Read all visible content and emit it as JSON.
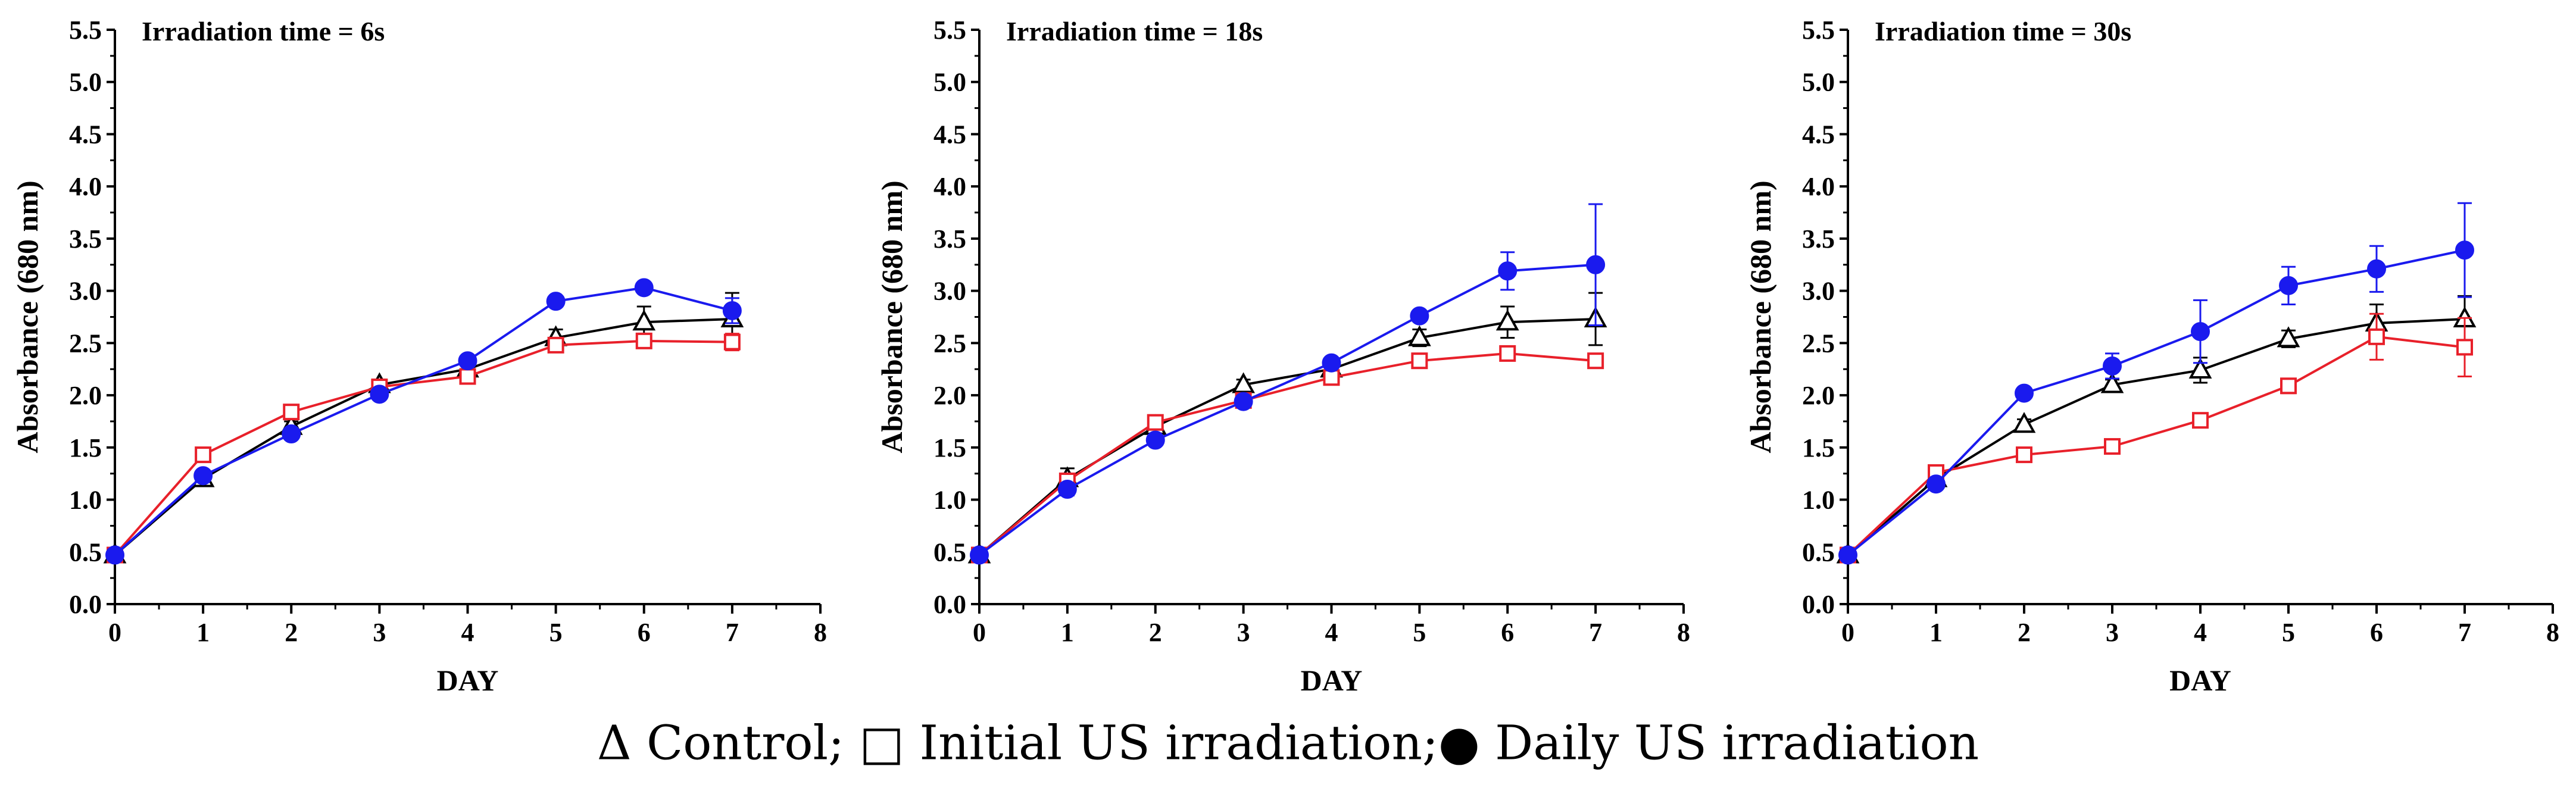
{
  "legend": {
    "control_symbol": "Δ",
    "control_label": " Control;",
    "initial_symbol": " □",
    "initial_label": " Initial US irradiation;",
    "daily_symbol": "●",
    "daily_label": " Daily US irradiation"
  },
  "chart_data": [
    {
      "type": "line",
      "title": "Irradiation time = 6s",
      "xlabel": "DAY",
      "ylabel": "Absorbance (680 nm)",
      "xlim": [
        0,
        8
      ],
      "ylim": [
        0,
        5.5
      ],
      "xticks": [
        "0",
        "1",
        "2",
        "3",
        "4",
        "5",
        "6",
        "7",
        "8"
      ],
      "yticks": [
        "0.0",
        "0.5",
        "1.0",
        "1.5",
        "2.0",
        "2.5",
        "3.0",
        "3.5",
        "4.0",
        "4.5",
        "5.0",
        "5.5"
      ],
      "x": [
        0,
        1,
        2,
        3,
        4,
        5,
        6,
        7
      ],
      "series": [
        {
          "name": "Control",
          "marker": "triangle",
          "color": "#000000",
          "values": [
            0.47,
            1.2,
            1.7,
            2.1,
            2.25,
            2.55,
            2.7,
            2.73
          ],
          "errors": [
            0.02,
            0.05,
            0.05,
            0.05,
            0.05,
            0.08,
            0.15,
            0.25
          ]
        },
        {
          "name": "Initial US irradiation",
          "marker": "square",
          "color": "#e8202a",
          "values": [
            0.47,
            1.43,
            1.84,
            2.08,
            2.18,
            2.48,
            2.52,
            2.51
          ],
          "errors": [
            0.02,
            0.04,
            0.04,
            0.04,
            0.04,
            0.05,
            0.04,
            0.08
          ]
        },
        {
          "name": "Daily US irradiation",
          "marker": "circle",
          "color": "#1a1aee",
          "values": [
            0.47,
            1.23,
            1.63,
            2.01,
            2.33,
            2.9,
            3.03,
            2.81
          ],
          "errors": [
            0.02,
            0.04,
            0.05,
            0.04,
            0.04,
            0.04,
            0.04,
            0.12
          ]
        }
      ]
    },
    {
      "type": "line",
      "title": "Irradiation time = 18s",
      "xlabel": "DAY",
      "ylabel": "Absorbance (680 nm)",
      "xlim": [
        0,
        8
      ],
      "ylim": [
        0,
        5.5
      ],
      "xticks": [
        "0",
        "1",
        "2",
        "3",
        "4",
        "5",
        "6",
        "7",
        "8"
      ],
      "yticks": [
        "0.0",
        "0.5",
        "1.0",
        "1.5",
        "2.0",
        "2.5",
        "3.0",
        "3.5",
        "4.0",
        "4.5",
        "5.0",
        "5.5"
      ],
      "x": [
        0,
        1,
        2,
        3,
        4,
        5,
        6,
        7
      ],
      "series": [
        {
          "name": "Control",
          "marker": "triangle",
          "color": "#000000",
          "values": [
            0.47,
            1.2,
            1.7,
            2.1,
            2.25,
            2.55,
            2.7,
            2.73
          ],
          "errors": [
            0.02,
            0.1,
            0.05,
            0.05,
            0.05,
            0.08,
            0.15,
            0.25
          ]
        },
        {
          "name": "Initial US irradiation",
          "marker": "square",
          "color": "#e8202a",
          "values": [
            0.47,
            1.18,
            1.74,
            1.95,
            2.17,
            2.33,
            2.4,
            2.33
          ],
          "errors": [
            0.02,
            0.05,
            0.04,
            0.04,
            0.04,
            0.04,
            0.04,
            0.06
          ]
        },
        {
          "name": "Daily US irradiation",
          "marker": "circle",
          "color": "#1a1aee",
          "values": [
            0.47,
            1.1,
            1.57,
            1.94,
            2.31,
            2.76,
            3.19,
            3.25
          ],
          "errors": [
            0.02,
            0.06,
            0.04,
            0.04,
            0.05,
            0.05,
            0.18,
            0.58
          ]
        }
      ]
    },
    {
      "type": "line",
      "title": "Irradiation time = 30s",
      "xlabel": "DAY",
      "ylabel": "Absorbance (680 nm)",
      "xlim": [
        0,
        8
      ],
      "ylim": [
        0,
        5.5
      ],
      "xticks": [
        "0",
        "1",
        "2",
        "3",
        "4",
        "5",
        "6",
        "7",
        "8"
      ],
      "yticks": [
        "0.0",
        "0.5",
        "1.0",
        "1.5",
        "2.0",
        "2.5",
        "3.0",
        "3.5",
        "4.0",
        "4.5",
        "5.0",
        "5.5"
      ],
      "x": [
        0,
        1,
        2,
        3,
        4,
        5,
        6,
        7
      ],
      "series": [
        {
          "name": "Control",
          "marker": "triangle",
          "color": "#000000",
          "values": [
            0.47,
            1.2,
            1.72,
            2.1,
            2.24,
            2.54,
            2.69,
            2.73
          ],
          "errors": [
            0.02,
            0.05,
            0.05,
            0.05,
            0.12,
            0.08,
            0.18,
            0.22
          ]
        },
        {
          "name": "Initial US irradiation",
          "marker": "square",
          "color": "#e8202a",
          "values": [
            0.47,
            1.26,
            1.43,
            1.51,
            1.76,
            2.09,
            2.56,
            2.46
          ],
          "errors": [
            0.02,
            0.04,
            0.05,
            0.04,
            0.04,
            0.07,
            0.22,
            0.28
          ]
        },
        {
          "name": "Daily US irradiation",
          "marker": "circle",
          "color": "#1a1aee",
          "values": [
            0.47,
            1.15,
            2.02,
            2.28,
            2.61,
            3.05,
            3.21,
            3.39
          ],
          "errors": [
            0.02,
            0.04,
            0.04,
            0.12,
            0.3,
            0.18,
            0.22,
            0.45
          ]
        }
      ]
    }
  ]
}
